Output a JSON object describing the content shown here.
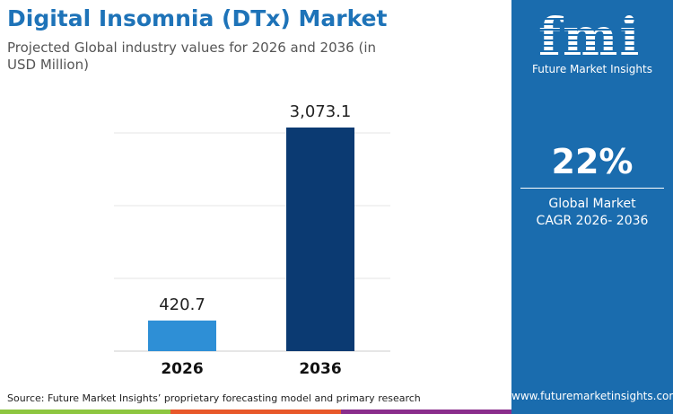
{
  "header": {
    "title": "Digital Insomnia (DTx) Market",
    "subtitle": "Projected Global industry values for 2026 and 2036 (in USD Million)"
  },
  "panel": {
    "brand": "Future Market Insights",
    "logo": "fmi",
    "cagr": "22%",
    "cagr_label_1": "Global Market",
    "cagr_label_2": "CAGR 2026- 2036",
    "url": "www.futuremarketinsights.com"
  },
  "footer": {
    "source": "Source: Future Market Insights’ proprietary forecasting model and primary research"
  },
  "colors": {
    "bar_2026": "#2e8fd6",
    "bar_2036": "#0b3a72",
    "panel": "#1a6cae",
    "strip": [
      "#8dc63f",
      "#e8582a",
      "#8a2d8c"
    ]
  },
  "chart_data": {
    "type": "bar",
    "categories": [
      "2026",
      "2036"
    ],
    "values": [
      420.7,
      3073.1
    ],
    "labels": [
      "420.7",
      "3,073.1"
    ],
    "ylim": [
      0,
      3073.1
    ],
    "grid": true
  }
}
